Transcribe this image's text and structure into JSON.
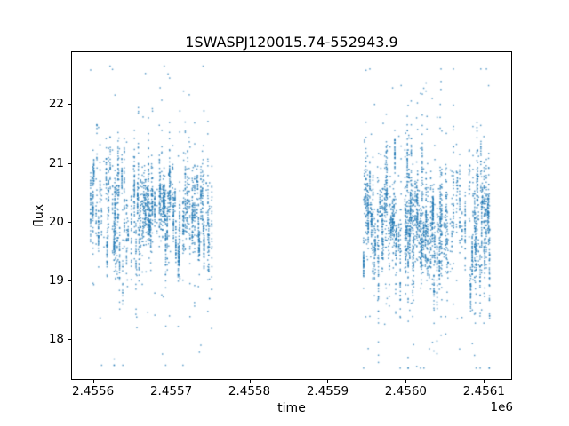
{
  "chart_data": {
    "type": "scatter",
    "title": "1SWASPJ120015.74-552943.9",
    "xlabel": "time",
    "ylabel": "flux",
    "x_offset_label": "1e6",
    "xlim": [
      2455572,
      2456136
    ],
    "ylim": [
      17.3,
      22.9
    ],
    "xticks": [
      2455600,
      2455700,
      2455800,
      2455900,
      2456000,
      2456100
    ],
    "xtick_labels": [
      "2.4556",
      "2.4557",
      "2.4558",
      "2.4559",
      "2.4560",
      "2.4561"
    ],
    "yticks": [
      18,
      19,
      20,
      21,
      22
    ],
    "ytick_labels": [
      "18",
      "19",
      "20",
      "21",
      "22"
    ],
    "grid": false,
    "legend": "none",
    "marker_color": "#1f77b4",
    "marker_size_px": 1.5,
    "seed": 20151245,
    "seasons": [
      {
        "x_start": 2455597,
        "x_end": 2455752,
        "obs_prob": 0.62,
        "pts_min": 4,
        "pts_max": 46,
        "flux_mean": 20.15,
        "night_mean_sigma": 0.42,
        "night_sigma_min": 0.12,
        "night_sigma_max": 0.55,
        "outlier_frac": 0.045,
        "outlier_spread": 2.6,
        "flux_min": 17.55,
        "flux_max": 22.65
      },
      {
        "x_start": 2455946,
        "x_end": 2456110,
        "obs_prob": 0.64,
        "pts_min": 4,
        "pts_max": 48,
        "flux_mean": 19.95,
        "night_mean_sigma": 0.45,
        "night_sigma_min": 0.12,
        "night_sigma_max": 0.6,
        "outlier_frac": 0.05,
        "outlier_spread": 2.7,
        "flux_min": 17.5,
        "flux_max": 22.6
      }
    ]
  }
}
